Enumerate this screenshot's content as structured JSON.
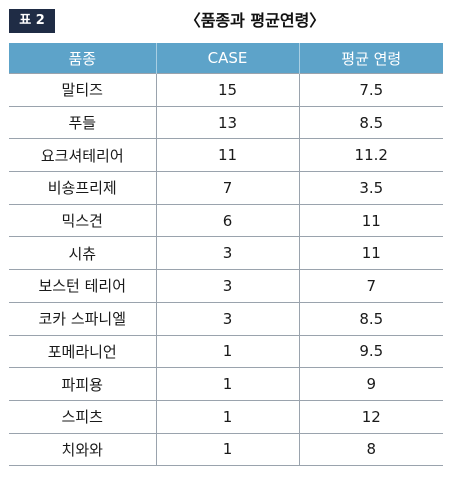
{
  "header": {
    "label": "표 2",
    "title": "〈품종과 평균연령〉"
  },
  "table": {
    "columns": [
      "품종",
      "CASE",
      "평균 연령"
    ],
    "rows": [
      [
        "말티즈",
        "15",
        "7.5"
      ],
      [
        "푸들",
        "13",
        "8.5"
      ],
      [
        "요크셔테리어",
        "11",
        "11.2"
      ],
      [
        "비숑프리제",
        "7",
        "3.5"
      ],
      [
        "믹스견",
        "6",
        "11"
      ],
      [
        "시츄",
        "3",
        "11"
      ],
      [
        "보스턴 테리어",
        "3",
        "7"
      ],
      [
        "코카 스파니엘",
        "3",
        "8.5"
      ],
      [
        "포메라니언",
        "1",
        "9.5"
      ],
      [
        "파피용",
        "1",
        "9"
      ],
      [
        "스피츠",
        "1",
        "12"
      ],
      [
        "치와와",
        "1",
        "8"
      ]
    ]
  },
  "colors": {
    "header_bg": "#5da3c9",
    "badge_bg": "#1f2c45"
  }
}
